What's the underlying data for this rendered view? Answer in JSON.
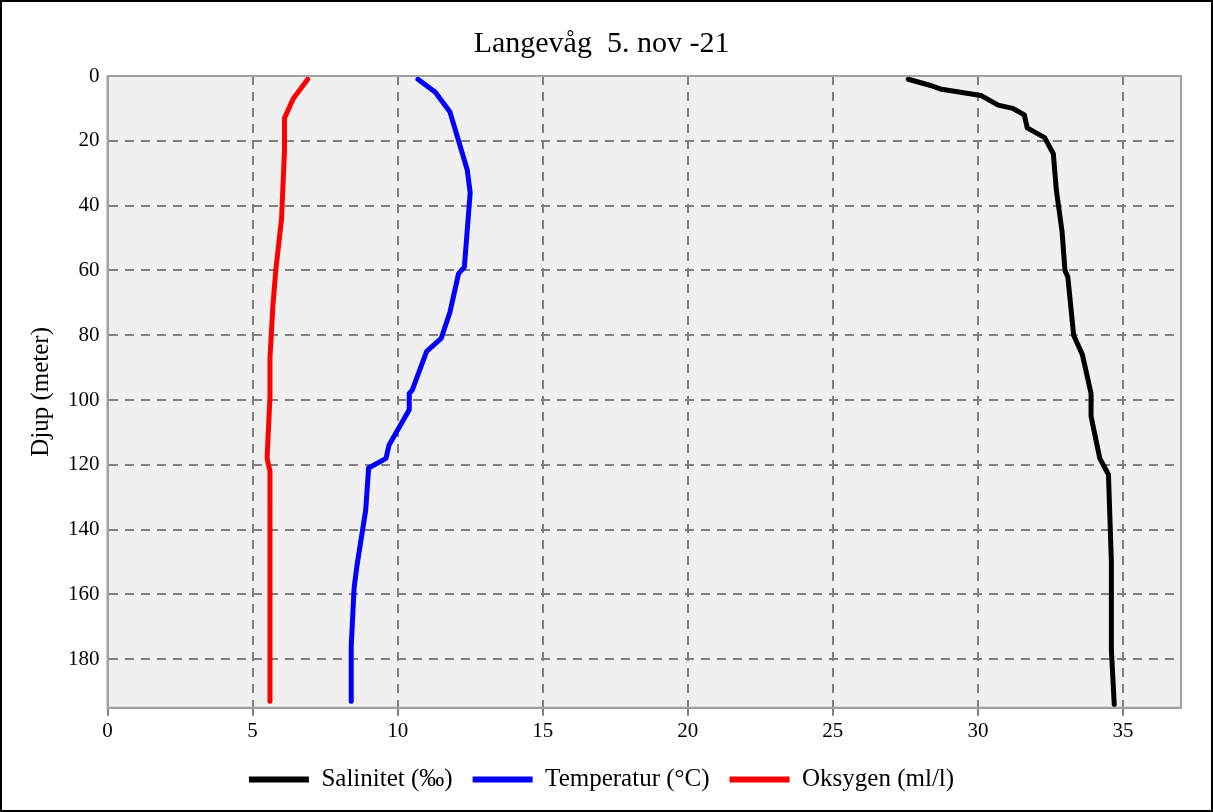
{
  "chart_data": {
    "type": "line",
    "title": "Langevåg  5. nov -21",
    "ylabel": "Djup (meter)",
    "xlim": [
      0,
      37
    ],
    "xticks": [
      0,
      5,
      10,
      15,
      20,
      25,
      30,
      35
    ],
    "ylim": [
      195,
      0
    ],
    "yticks": [
      0,
      20,
      40,
      60,
      80,
      100,
      120,
      140,
      160,
      180
    ],
    "grid": true,
    "legend": "bottom",
    "marker": "none",
    "line_style": "solid",
    "series": [
      {
        "name": "Salinitet (‰)",
        "color": "#000000",
        "x": [
          27.6,
          28.4,
          28.7,
          30.1,
          30.3,
          30.7,
          31.2,
          31.6,
          31.7,
          32.3,
          32.6,
          32.7,
          32.9,
          33.0,
          33.1,
          33.3,
          33.6,
          33.9,
          33.9,
          34.2,
          34.5,
          34.6,
          34.6,
          34.7
        ],
        "values": [
          1,
          3,
          4,
          6,
          7,
          9,
          10,
          12,
          16,
          19,
          24,
          35,
          48,
          60,
          62,
          80,
          86,
          98,
          105,
          118,
          123,
          150,
          177,
          194
        ]
      },
      {
        "name": "Temperatur (°C)",
        "color": "#0000ff",
        "x": [
          10.7,
          11.3,
          11.8,
          12.1,
          12.4,
          12.5,
          12.3,
          12.1,
          11.8,
          11.5,
          11.0,
          10.5,
          10.4,
          10.4,
          9.7,
          9.6,
          9.0,
          8.9,
          8.6,
          8.5,
          8.4,
          8.4
        ],
        "values": [
          1,
          5,
          11,
          20,
          29,
          36,
          59,
          61,
          73,
          81,
          85,
          97,
          98,
          103,
          114,
          118,
          121,
          134,
          151,
          158,
          176,
          193
        ]
      },
      {
        "name": "Oksygen (ml/l)",
        "color": "#ff0000",
        "x": [
          6.9,
          6.4,
          6.1,
          6.1,
          6.0,
          5.8,
          5.7,
          5.6,
          5.6,
          5.5,
          5.6,
          5.6
        ],
        "values": [
          1,
          7,
          13,
          23,
          44,
          60,
          71,
          87,
          99,
          118,
          122,
          193
        ]
      }
    ]
  }
}
